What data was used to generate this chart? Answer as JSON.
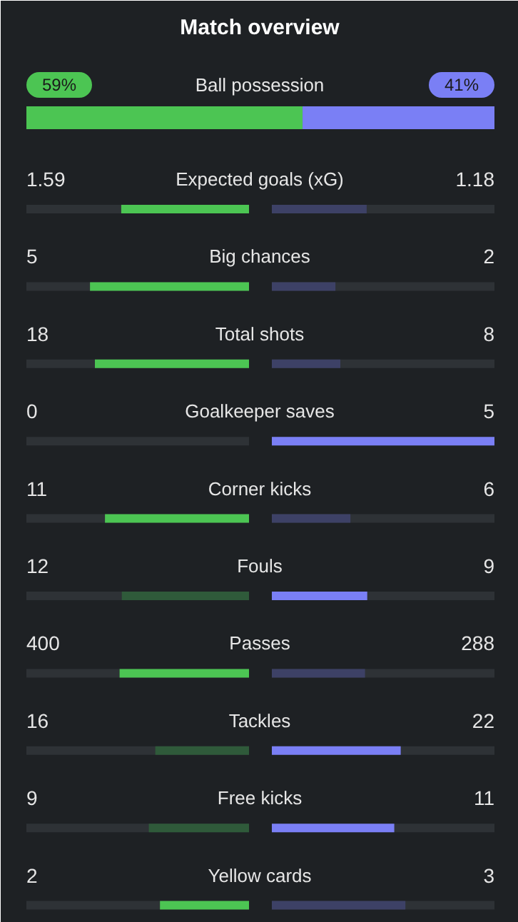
{
  "chart_data": {
    "type": "other",
    "title": "Match overview",
    "categories": [
      "Ball possession",
      "Expected goals (xG)",
      "Big chances",
      "Total shots",
      "Goalkeeper saves",
      "Corner kicks",
      "Fouls",
      "Passes",
      "Tackles",
      "Free kicks",
      "Yellow cards"
    ],
    "series": [
      {
        "color": "#4cc553",
        "values": [
          59,
          1.59,
          5,
          18,
          0,
          11,
          12,
          400,
          16,
          9,
          2
        ],
        "value_labels": [
          "59%",
          "1.59",
          "5",
          "18",
          "0",
          "11",
          "12",
          "400",
          "16",
          "9",
          "2"
        ],
        "colors": [
          "#4cc553",
          "#4cc553",
          "#4cc553",
          "#4cc553",
          "#2f5a3a",
          "#4cc553",
          "#2f5a3a",
          "#4cc553",
          "#2f5a3a",
          "#2f5a3a",
          "#4cc553"
        ]
      },
      {
        "color": "#7a7ff5",
        "values": [
          41,
          1.18,
          2,
          8,
          5,
          6,
          9,
          288,
          22,
          11,
          3
        ],
        "value_labels": [
          "41%",
          "1.18",
          "2",
          "8",
          "5",
          "6",
          "9",
          "288",
          "22",
          "11",
          "3"
        ],
        "colors": [
          "#7a7ff5",
          "#3d4166",
          "#3d4166",
          "#3d4166",
          "#7a7ff5",
          "#3d4166",
          "#7a7ff5",
          "#3d4166",
          "#7a7ff5",
          "#7a7ff5",
          "#3d4166"
        ]
      }
    ],
    "data_labels": true
  }
}
